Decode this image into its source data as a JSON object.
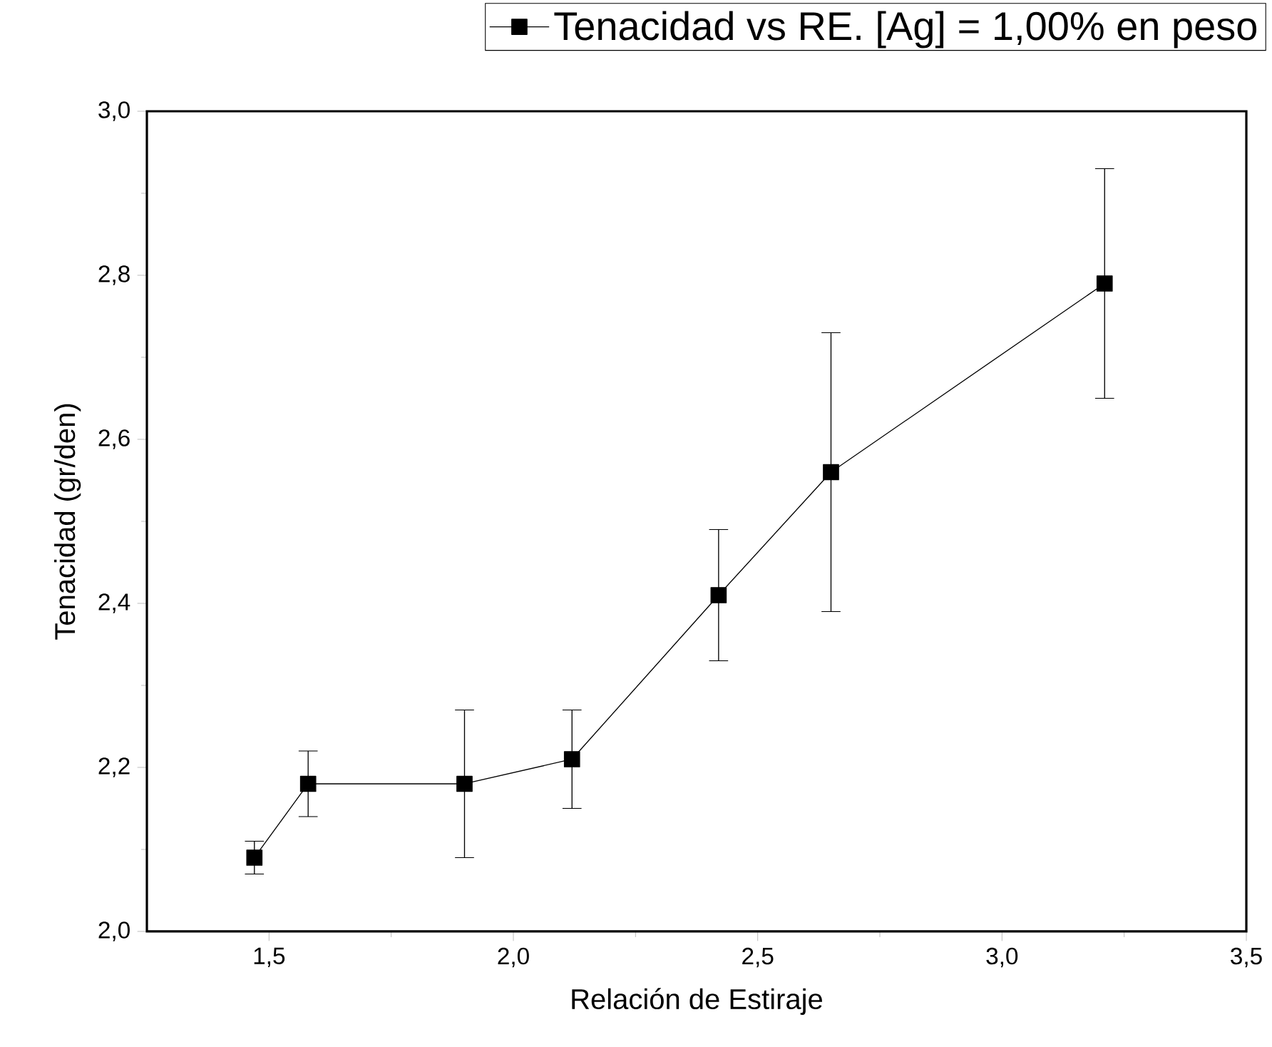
{
  "chart_data": {
    "type": "line",
    "xlabel": "Relación de Estiraje",
    "ylabel": "Tenacidad (gr/den)",
    "x": [
      1.47,
      1.58,
      1.9,
      2.12,
      2.42,
      2.65,
      3.21
    ],
    "series": [
      {
        "name": "Tenacidad vs RE. [Ag] = 1,00% en peso",
        "color": "#000000",
        "values": [
          2.09,
          2.18,
          2.18,
          2.21,
          2.41,
          2.56,
          2.79
        ],
        "errors": [
          0.02,
          0.04,
          0.09,
          0.06,
          0.08,
          0.17,
          0.14
        ]
      }
    ],
    "xlim": [
      1.25,
      3.5
    ],
    "ylim": [
      2.0,
      3.0
    ],
    "xticks": [
      {
        "value": 1.5,
        "label": "1,5"
      },
      {
        "value": 2.0,
        "label": "2,0"
      },
      {
        "value": 2.5,
        "label": "2,5"
      },
      {
        "value": 3.0,
        "label": "3,0"
      },
      {
        "value": 3.5,
        "label": "3,5"
      }
    ],
    "yticks": [
      {
        "value": 2.0,
        "label": "2,0"
      },
      {
        "value": 2.2,
        "label": "2,2"
      },
      {
        "value": 2.4,
        "label": "2,4"
      },
      {
        "value": 2.6,
        "label": "2,6"
      },
      {
        "value": 2.8,
        "label": "2,8"
      },
      {
        "value": 3.0,
        "label": "3,0"
      }
    ],
    "marker": "square",
    "line_style": "solid",
    "legend": "top"
  }
}
